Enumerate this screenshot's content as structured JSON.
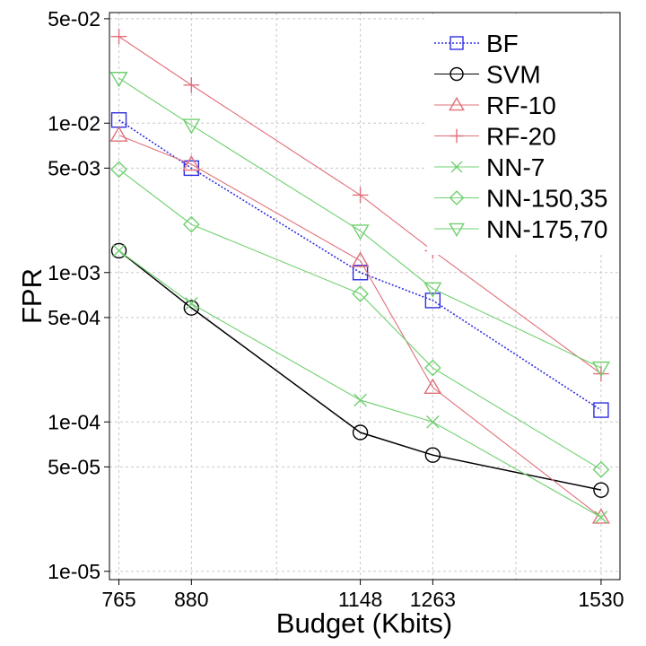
{
  "chart_data": {
    "type": "line",
    "xlabel": "Budget (Kbits)",
    "ylabel": "FPR",
    "x": [
      765,
      880,
      1148,
      1263,
      1530
    ],
    "x_tick_labels": [
      "765",
      "880",
      "1148",
      "1263",
      "1530"
    ],
    "xlim": [
      750,
      1560
    ],
    "x_minor_gridlines": [
      1015,
      1395
    ],
    "y_scale": "log",
    "ylim": [
      8.8e-06,
      0.055
    ],
    "y_ticks": [
      0.05,
      0.01,
      0.005,
      0.001,
      0.0005,
      0.0001,
      5e-05,
      1e-05
    ],
    "y_tick_labels": [
      "5e-02",
      "1e-02",
      "5e-03",
      "1e-03",
      "5e-04",
      "1e-04",
      "5e-05",
      "1e-05"
    ],
    "grid": true,
    "legend_position": "top-right",
    "series": [
      {
        "name": "BF",
        "color": "#2f2fe0",
        "marker": "square",
        "dashed": true,
        "values": [
          0.0105,
          0.005,
          0.001,
          0.00065,
          0.00012
        ]
      },
      {
        "name": "SVM",
        "color": "#000000",
        "marker": "circle",
        "dashed": false,
        "values": [
          0.0014,
          0.00058,
          8.5e-05,
          6e-05,
          3.5e-05
        ]
      },
      {
        "name": "RF-10",
        "color": "#e0707a",
        "marker": "triangle-up",
        "dashed": false,
        "values": [
          0.0083,
          0.0053,
          0.0012,
          0.00017,
          2.3e-05
        ]
      },
      {
        "name": "RF-20",
        "color": "#e0707a",
        "marker": "plus",
        "dashed": false,
        "values": [
          0.038,
          0.018,
          0.0033,
          0.0014,
          0.00021
        ]
      },
      {
        "name": "NN-7",
        "color": "#6fd06f",
        "marker": "x",
        "dashed": false,
        "values": [
          0.0014,
          0.00062,
          0.00014,
          0.0001,
          2.3e-05
        ]
      },
      {
        "name": "NN-150,35",
        "color": "#6fd06f",
        "marker": "diamond",
        "dashed": false,
        "values": [
          0.0049,
          0.0021,
          0.00072,
          0.00023,
          4.8e-05
        ]
      },
      {
        "name": "NN-175,70",
        "color": "#6fd06f",
        "marker": "triangle-down",
        "dashed": false,
        "values": [
          0.02,
          0.0097,
          0.0019,
          0.00078,
          0.00023
        ]
      }
    ]
  }
}
